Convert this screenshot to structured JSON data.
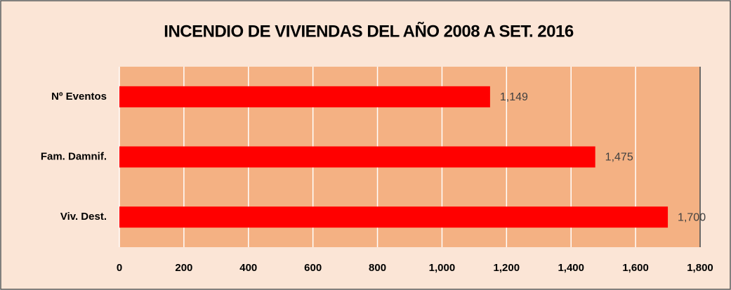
{
  "chart_data": {
    "type": "bar",
    "title": "INCENDIO DE VIVIENDAS DEL AÑO 2008 A SET. 2016",
    "categories": [
      "Nº Eventos",
      "Fam. Damnif.",
      "Viv. Dest."
    ],
    "values": [
      1149,
      1475,
      1700
    ],
    "value_labels": [
      "1,149",
      "1,475",
      "1,700"
    ],
    "color": "#ff0000",
    "xlim": [
      0,
      1800
    ],
    "xticks": [
      0,
      200,
      400,
      600,
      800,
      {
        "value": 1000,
        "label": "1,000"
      },
      {
        "value": 1200,
        "label": "1,200"
      },
      {
        "value": 1400,
        "label": "1,400"
      },
      {
        "value": 1600,
        "label": "1,600"
      },
      {
        "value": 1800,
        "label": "1,800"
      }
    ],
    "grid": true
  }
}
